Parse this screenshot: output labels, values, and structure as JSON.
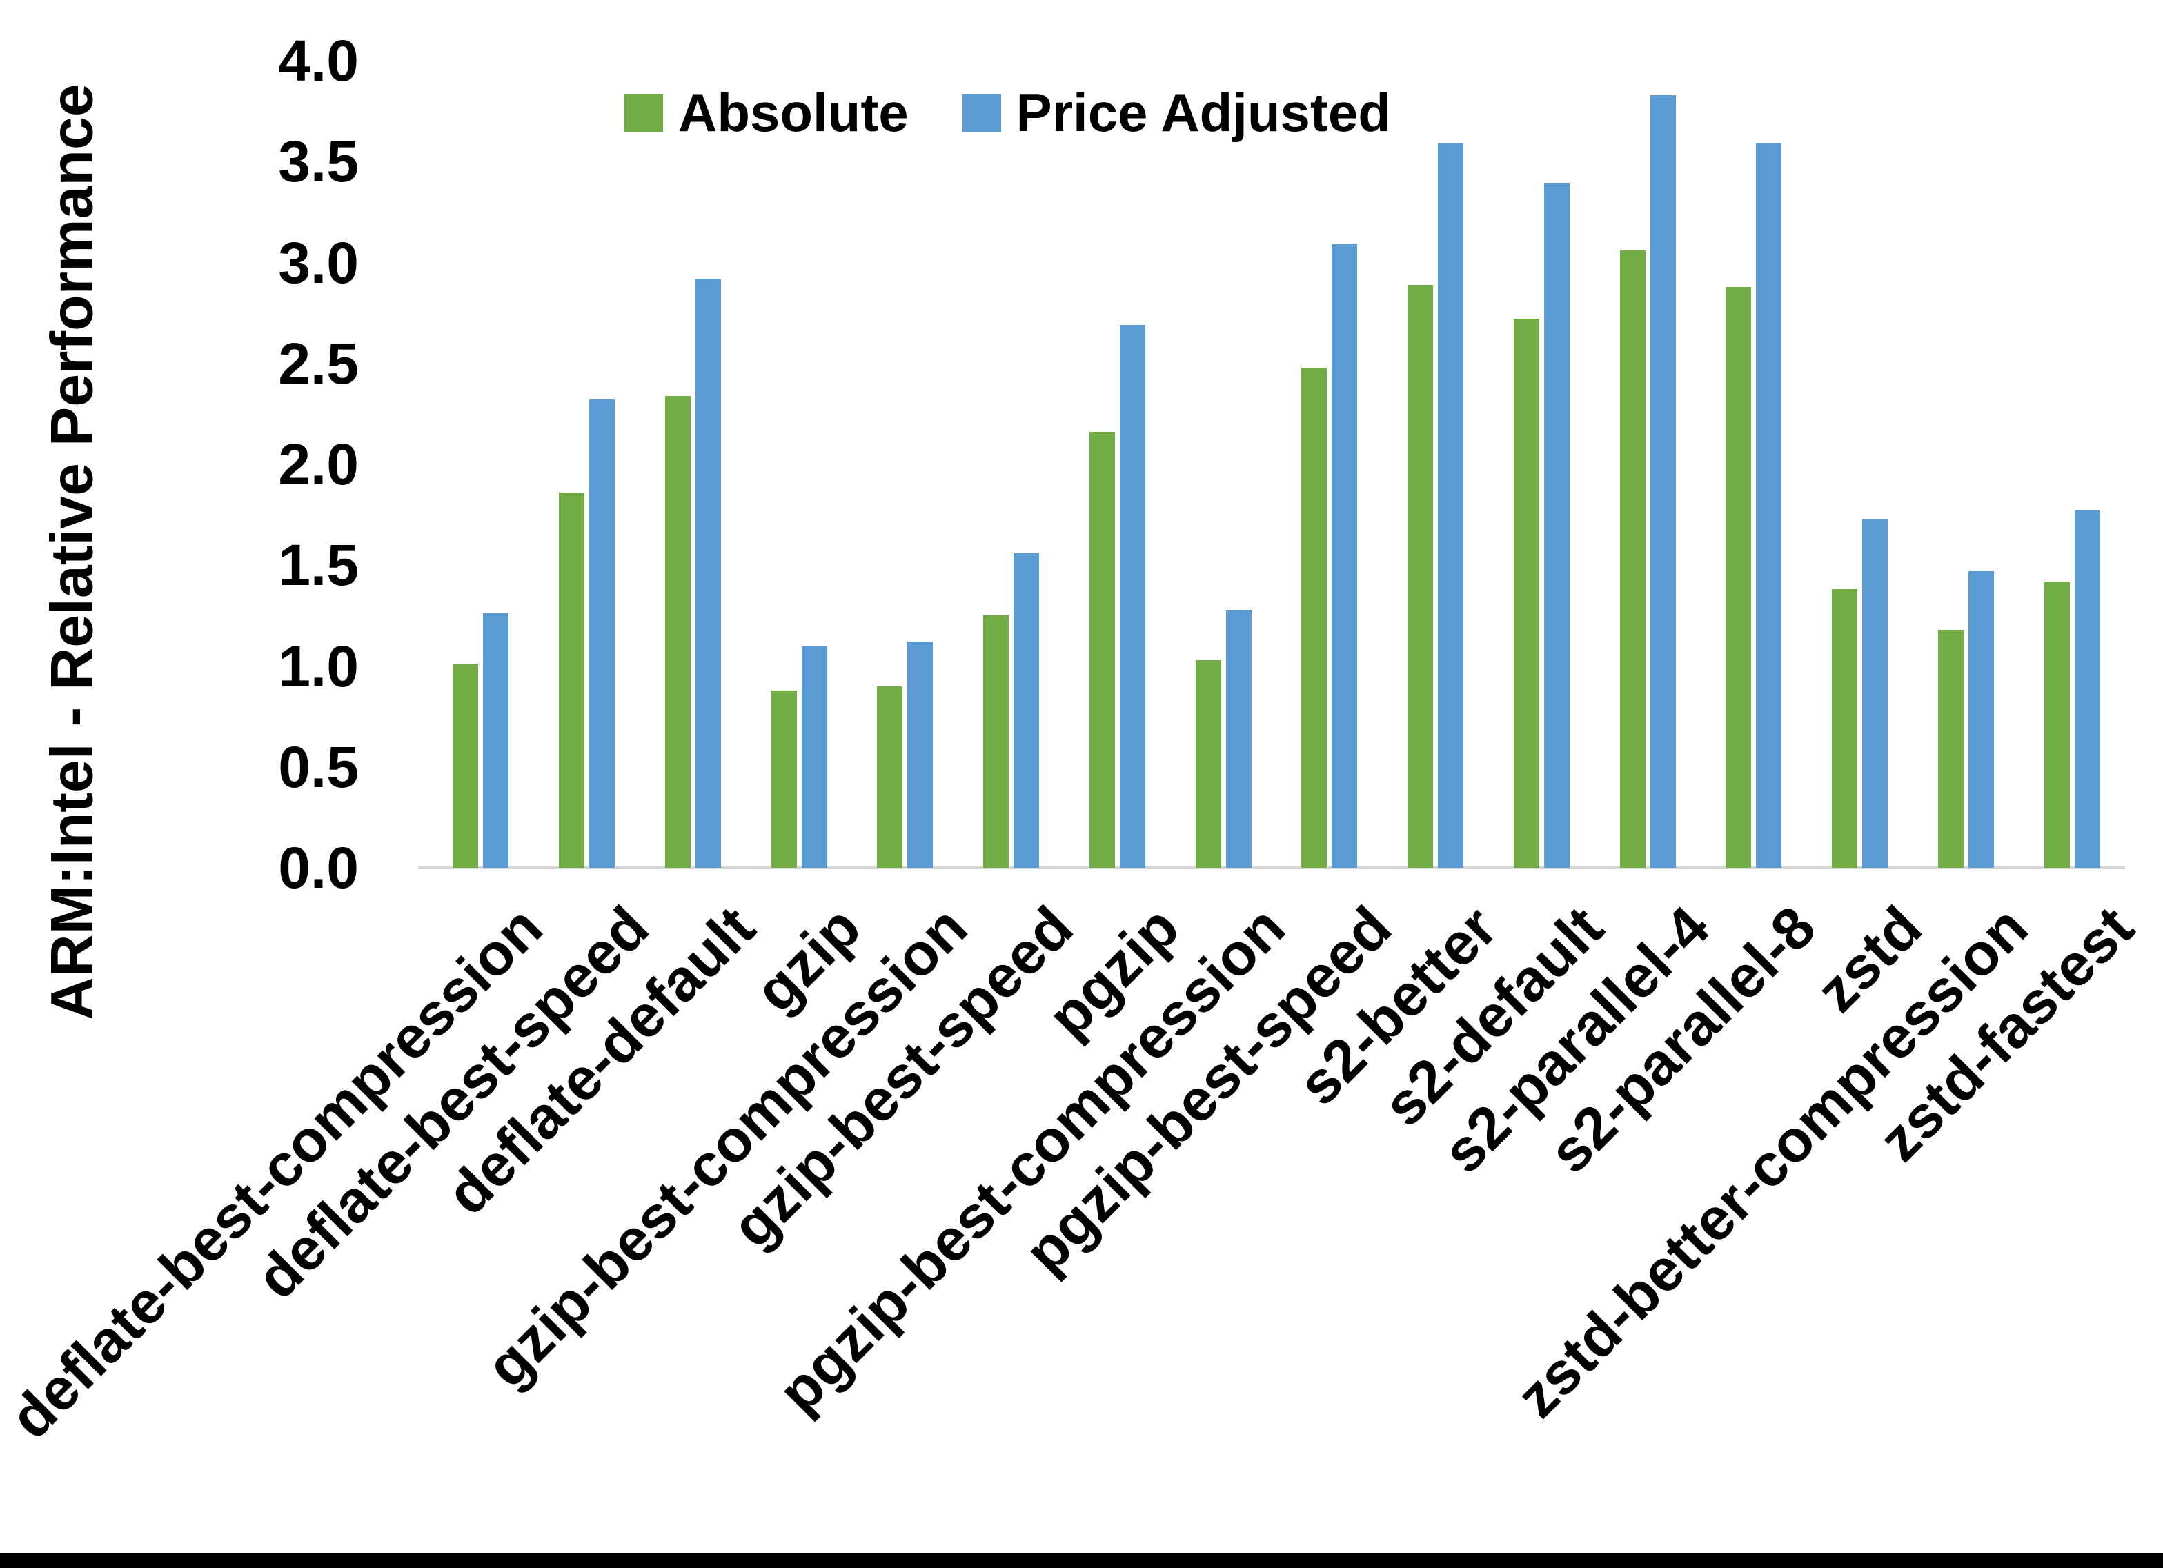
{
  "chart_data": {
    "type": "bar",
    "title": "",
    "xlabel": "",
    "ylabel": "ARM:Intel - Relative Performance",
    "ylim": [
      0.0,
      4.0
    ],
    "ytick_step": 0.5,
    "yticks": [
      "4.0",
      "3.5",
      "3.0",
      "2.5",
      "2.0",
      "1.5",
      "1.0",
      "0.5",
      "0.0"
    ],
    "grid": false,
    "legend_position": "top-center",
    "categories": [
      "deflate-best-compression",
      "deflate-best-speed",
      "deflate-default",
      "gzip",
      "gzip-best-compression",
      "gzip-best-speed",
      "pgzip",
      "pgzip-best-compression",
      "pgzip-best-speed",
      "s2-better",
      "s2-default",
      "s2-parallel-4",
      "s2-parallel-8",
      "zstd",
      "zstd-better-compression",
      "zstd-fastest"
    ],
    "series": [
      {
        "name": "Absolute",
        "color": "#70AD47",
        "values": [
          1.01,
          1.86,
          2.34,
          0.88,
          0.9,
          1.25,
          2.16,
          1.03,
          2.48,
          2.89,
          2.72,
          3.06,
          2.88,
          1.38,
          1.18,
          1.42
        ]
      },
      {
        "name": "Price Adjusted",
        "color": "#5B9BD5",
        "values": [
          1.26,
          2.32,
          2.92,
          1.1,
          1.12,
          1.56,
          2.69,
          1.28,
          3.09,
          3.59,
          3.39,
          3.83,
          3.59,
          1.73,
          1.47,
          1.77
        ]
      }
    ]
  },
  "colors": {
    "background": "#FFFFFF",
    "axis_line": "#D6D6D6",
    "text": "#000000",
    "bottom_bar": "#000000"
  }
}
